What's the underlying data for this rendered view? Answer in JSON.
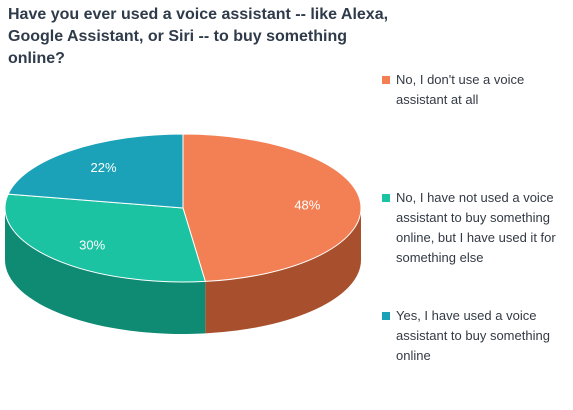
{
  "colors": {
    "no_voice": "#f37f54",
    "no_voice_side": "#a8502e",
    "not_buy": "#1cc3a2",
    "not_buy_side": "#0f8a73",
    "yes_buy": "#1ca2b8",
    "yes_buy_side": "#127487"
  },
  "chart_data": {
    "type": "pie",
    "title": "Have you ever used a voice assistant -- like Alexa, Google Assistant, or Siri -- to buy something online?",
    "legend_position": "right",
    "slices": [
      {
        "label": "No, I don't use a voice assistant at all",
        "value": 48,
        "value_label": "48%",
        "color": "#f37f54"
      },
      {
        "label": "No, I have not used a voice assistant to buy something online, but I have used it for something else",
        "value": 30,
        "value_label": "30%",
        "color": "#1cc3a2"
      },
      {
        "label": "Yes, I have used a voice assistant to buy something online",
        "value": 22,
        "value_label": "22%",
        "color": "#1ca2b8"
      }
    ]
  }
}
